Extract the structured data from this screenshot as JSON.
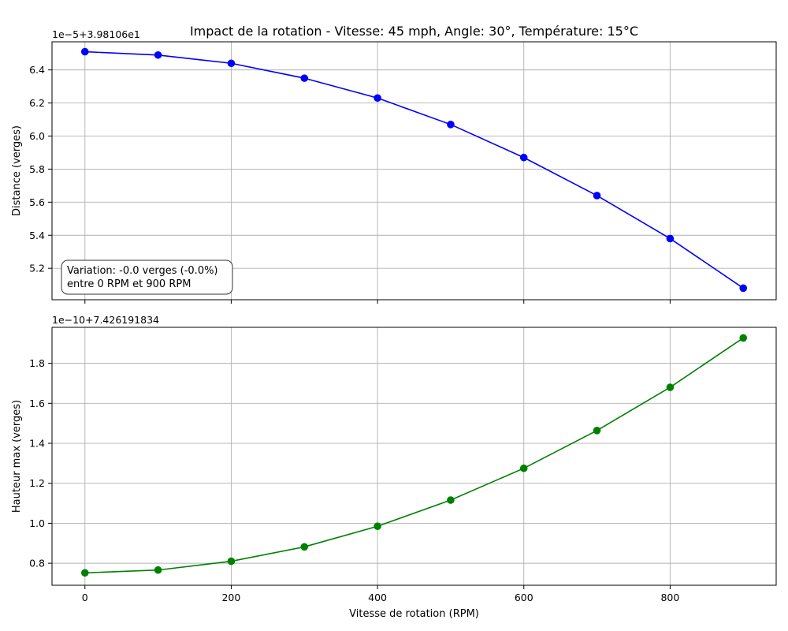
{
  "chart_data": [
    {
      "type": "line",
      "title": "Impact de la rotation - Vitesse: 45 mph, Angle: 30°, Température: 15°C",
      "xlabel": "",
      "ylabel": "Distance (verges)",
      "offset_label": "1e−5+3.98106e1",
      "x": [
        0,
        100,
        200,
        300,
        400,
        500,
        600,
        700,
        800,
        900
      ],
      "xlim": [
        -45,
        945
      ],
      "xticks": [
        0,
        200,
        400,
        600,
        800
      ],
      "show_xtick_labels": false,
      "ylim": [
        5.01,
        6.57
      ],
      "yticks": [
        5.2,
        5.4,
        5.6,
        5.8,
        6.0,
        6.2,
        6.4
      ],
      "ytick_labels": [
        "5.2",
        "5.4",
        "5.6",
        "5.8",
        "6.0",
        "6.2",
        "6.4"
      ],
      "grid": true,
      "series": [
        {
          "name": "",
          "color": "#0000ff",
          "marker": "circle",
          "values": [
            6.51,
            6.49,
            6.44,
            6.35,
            6.23,
            6.07,
            5.87,
            5.64,
            5.38,
            5.08
          ]
        }
      ],
      "annotation": {
        "lines": [
          "Variation: -0.0 verges (-0.0%)",
          "entre 0 RPM et 900 RPM"
        ],
        "placement": "bottom-left"
      }
    },
    {
      "type": "line",
      "title": "",
      "xlabel": "Vitesse de rotation (RPM)",
      "ylabel": "Hauteur max (verges)",
      "offset_label": "1e−10+7.426191834",
      "x": [
        0,
        100,
        200,
        300,
        400,
        500,
        600,
        700,
        800,
        900
      ],
      "xlim": [
        -45,
        945
      ],
      "xticks": [
        0,
        200,
        400,
        600,
        800
      ],
      "xtick_labels": [
        "0",
        "200",
        "400",
        "600",
        "800"
      ],
      "show_xtick_labels": true,
      "ylim": [
        0.69,
        1.98
      ],
      "yticks": [
        0.8,
        1.0,
        1.2,
        1.4,
        1.6,
        1.8
      ],
      "ytick_labels": [
        "0.8",
        "1.0",
        "1.2",
        "1.4",
        "1.6",
        "1.8"
      ],
      "grid": true,
      "series": [
        {
          "name": "",
          "color": "#008000",
          "marker": "circle",
          "values": [
            0.752,
            0.766,
            0.81,
            0.882,
            0.985,
            1.116,
            1.275,
            1.464,
            1.68,
            1.927
          ]
        }
      ]
    }
  ]
}
